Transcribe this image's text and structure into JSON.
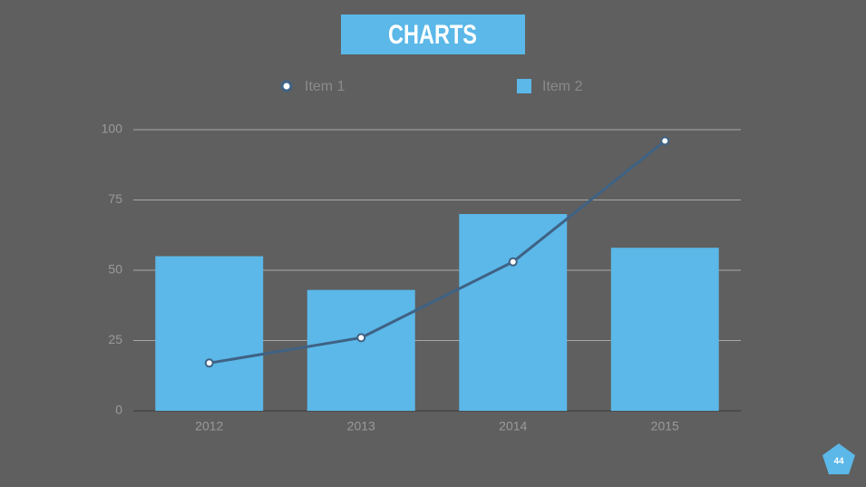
{
  "chart_data": {
    "type": "combo",
    "title": "CHARTS",
    "categories": [
      "2012",
      "2013",
      "2014",
      "2015"
    ],
    "series": [
      {
        "name": "Item 1",
        "type": "line",
        "color": "#3f6284",
        "values": [
          17,
          26,
          53,
          96
        ]
      },
      {
        "name": "Item 2",
        "type": "bar",
        "color": "#5bb8e8",
        "values": [
          55,
          43,
          70,
          58
        ]
      }
    ],
    "ylim": [
      0,
      100
    ],
    "yticks": [
      0,
      25,
      50,
      75,
      100
    ],
    "grid": true,
    "legend": "top"
  },
  "page_number": "44"
}
